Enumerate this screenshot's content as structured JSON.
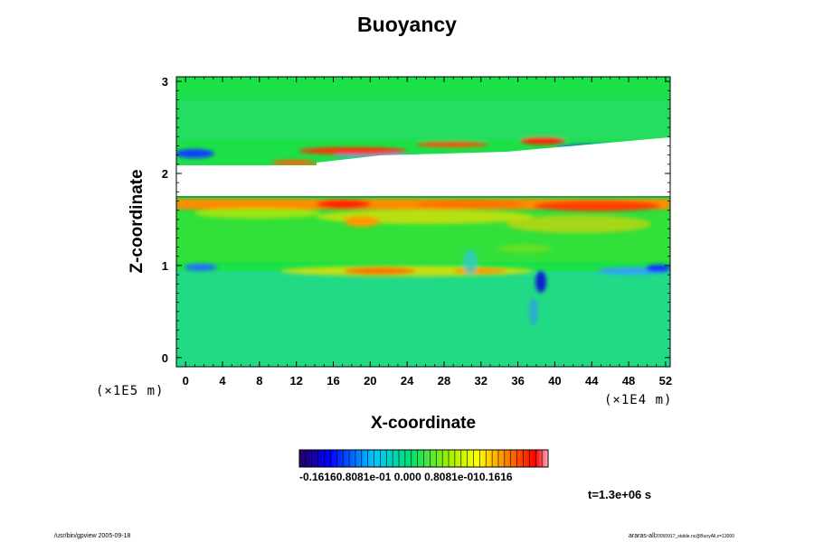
{
  "page": {
    "title": "Buoyancy",
    "timestamp": "t=1.3e+06 s",
    "footer_left": "/usr/bin/gpview 2005-09-18",
    "footer_right_main": "araras-all",
    "footer_right_sub": "20050917_stable.nc@BuoyAll,z=13000"
  },
  "chart_data": {
    "type": "heatmap",
    "title": "Buoyancy",
    "xlabel": "X-coordinate",
    "ylabel": "Z-coordinate",
    "x_unit": "(×1E4 m)",
    "y_unit": "(×1E5 m)",
    "xlim": [
      -1,
      52.5
    ],
    "ylim": [
      -0.1,
      3.05
    ],
    "x_ticks": [
      "0",
      "4",
      "8",
      "12",
      "16",
      "20",
      "24",
      "28",
      "32",
      "36",
      "40",
      "44",
      "48",
      "52"
    ],
    "y_ticks": [
      "0",
      "1",
      "2",
      "3"
    ],
    "colorbar": {
      "colormap": "rainbow",
      "labels": "-0.16160.8081e-01 0.000 0.8081e-010.1616",
      "range": [
        -0.1616,
        0.1616
      ]
    },
    "background_value_color": "#20e040",
    "features": [
      {
        "feature": "white undefined band",
        "z_range": [
          1.78,
          2.1
        ]
      },
      {
        "feature": "positive red band",
        "z_range": [
          1.65,
          1.75
        ]
      },
      {
        "feature": "positive layer",
        "z_range": [
          0.85,
          0.95
        ]
      },
      {
        "feature": "negative blue streak",
        "z_range": [
          2.2,
          2.3
        ]
      }
    ]
  }
}
